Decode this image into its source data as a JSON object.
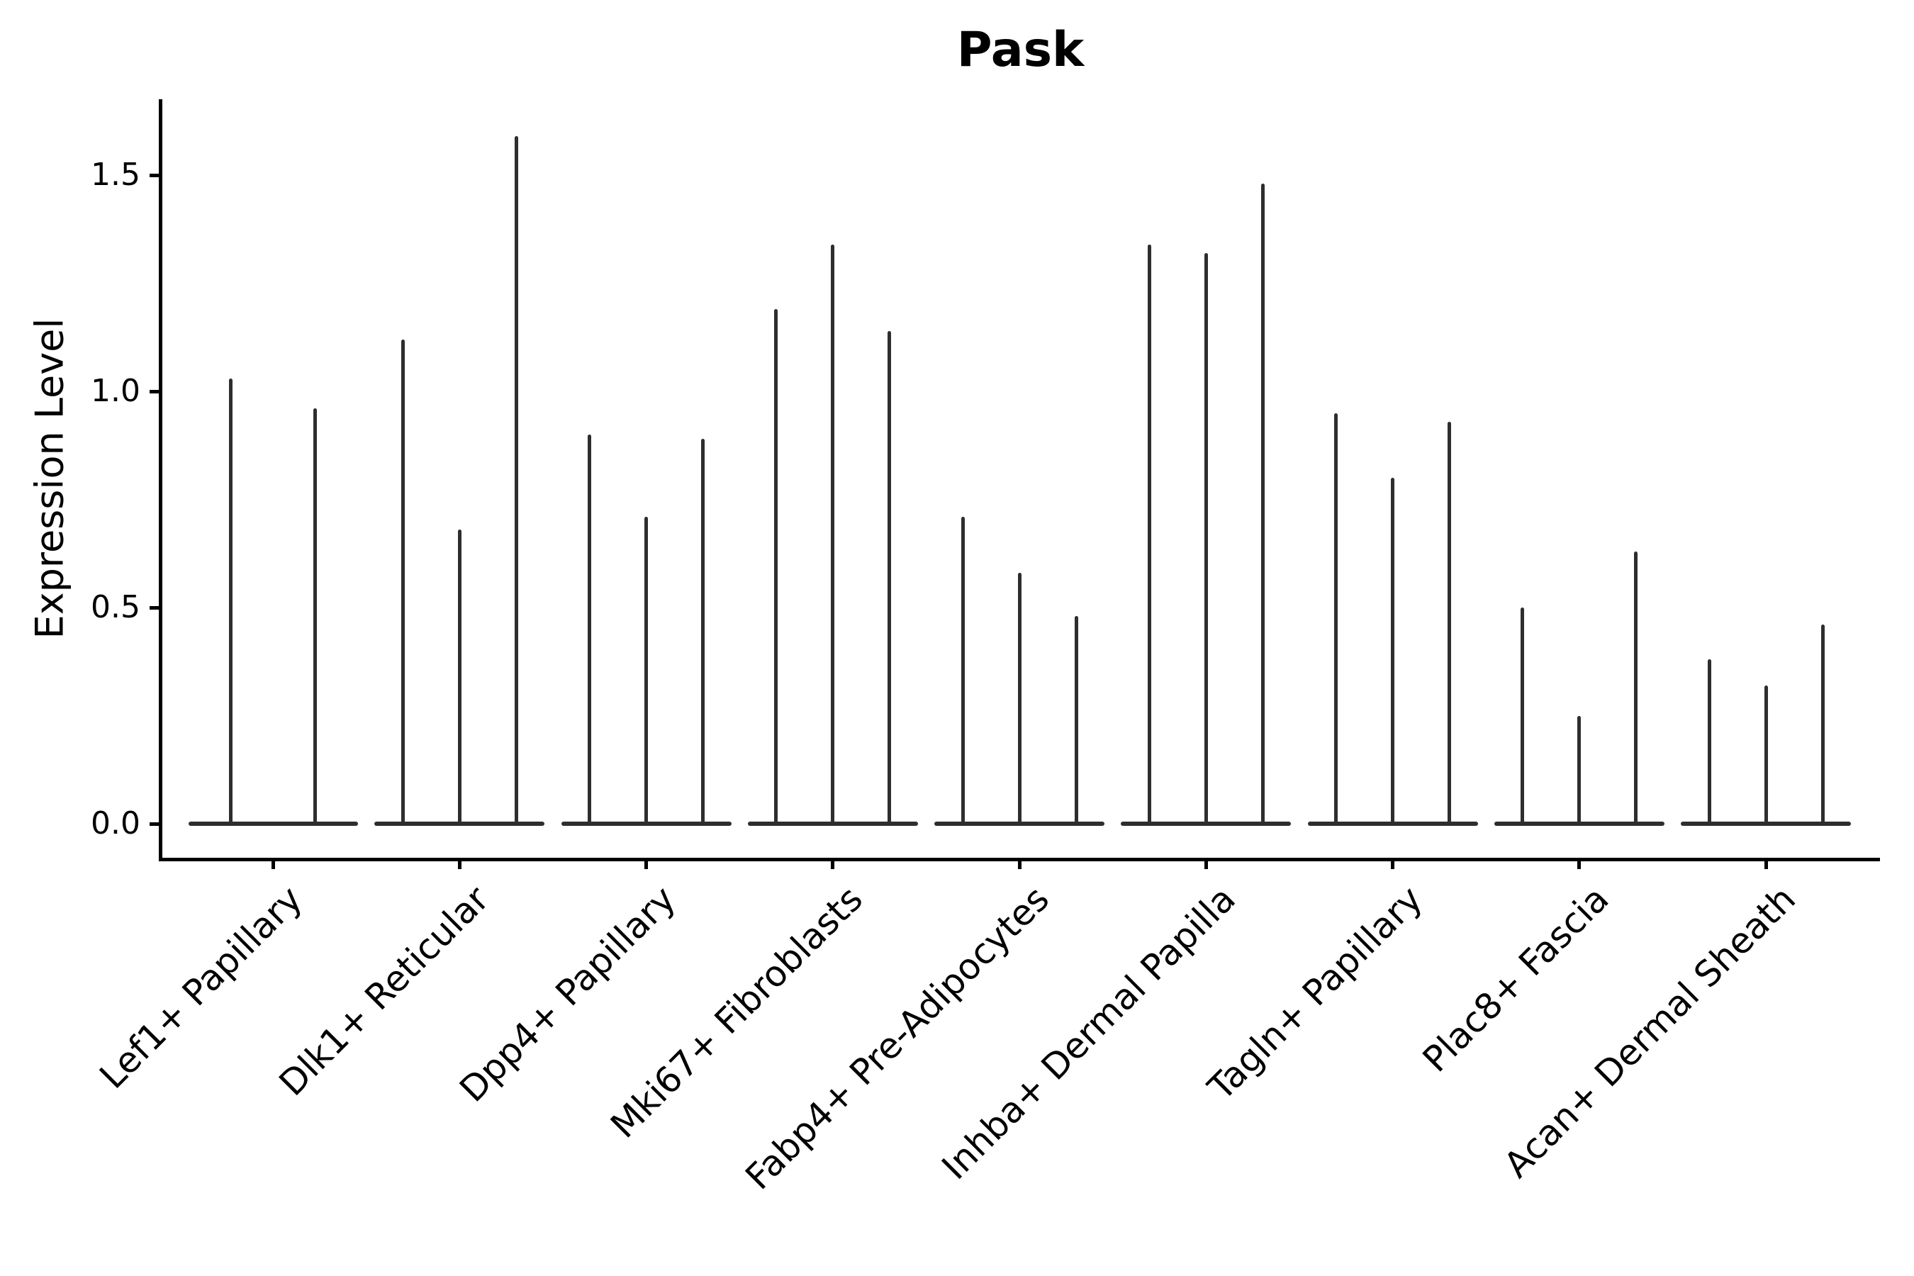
{
  "chart_data": {
    "type": "violin",
    "title": "Pask",
    "ylabel": "Expression Level",
    "xlabel": "",
    "categories": [
      "Lef1+ Papillary",
      "Dlk1+ Reticular",
      "Dpp4+ Papillary",
      "Mki67+ Fibroblasts",
      "Fabp4+ Pre-Adipocytes",
      "Inhba+ Dermal Papilla",
      "Tagln+ Papillary",
      "Plac8+ Fascia",
      "Acan+ Dermal Sheath"
    ],
    "violins_max_expression": [
      [
        1.03,
        0.96
      ],
      [
        1.12,
        0.68,
        1.59
      ],
      [
        0.9,
        0.71,
        0.89
      ],
      [
        1.19,
        1.34,
        1.14
      ],
      [
        0.71,
        0.58,
        0.48
      ],
      [
        1.34,
        1.32,
        1.48
      ],
      [
        0.95,
        0.8,
        0.93
      ],
      [
        0.5,
        0.25,
        0.63
      ],
      [
        0.38,
        0.32,
        0.46
      ]
    ],
    "violin_shape": "thin vertical spike from 0 up to max value with wide flat base at 0",
    "yticks": [
      0.0,
      0.5,
      1.0,
      1.5
    ],
    "ylim": [
      -0.08,
      1.68
    ],
    "grid": false,
    "legend": false,
    "colors": {
      "violin": "#2e2e2e",
      "axis": "#000000",
      "text": "#000000",
      "background": "#ffffff"
    }
  }
}
